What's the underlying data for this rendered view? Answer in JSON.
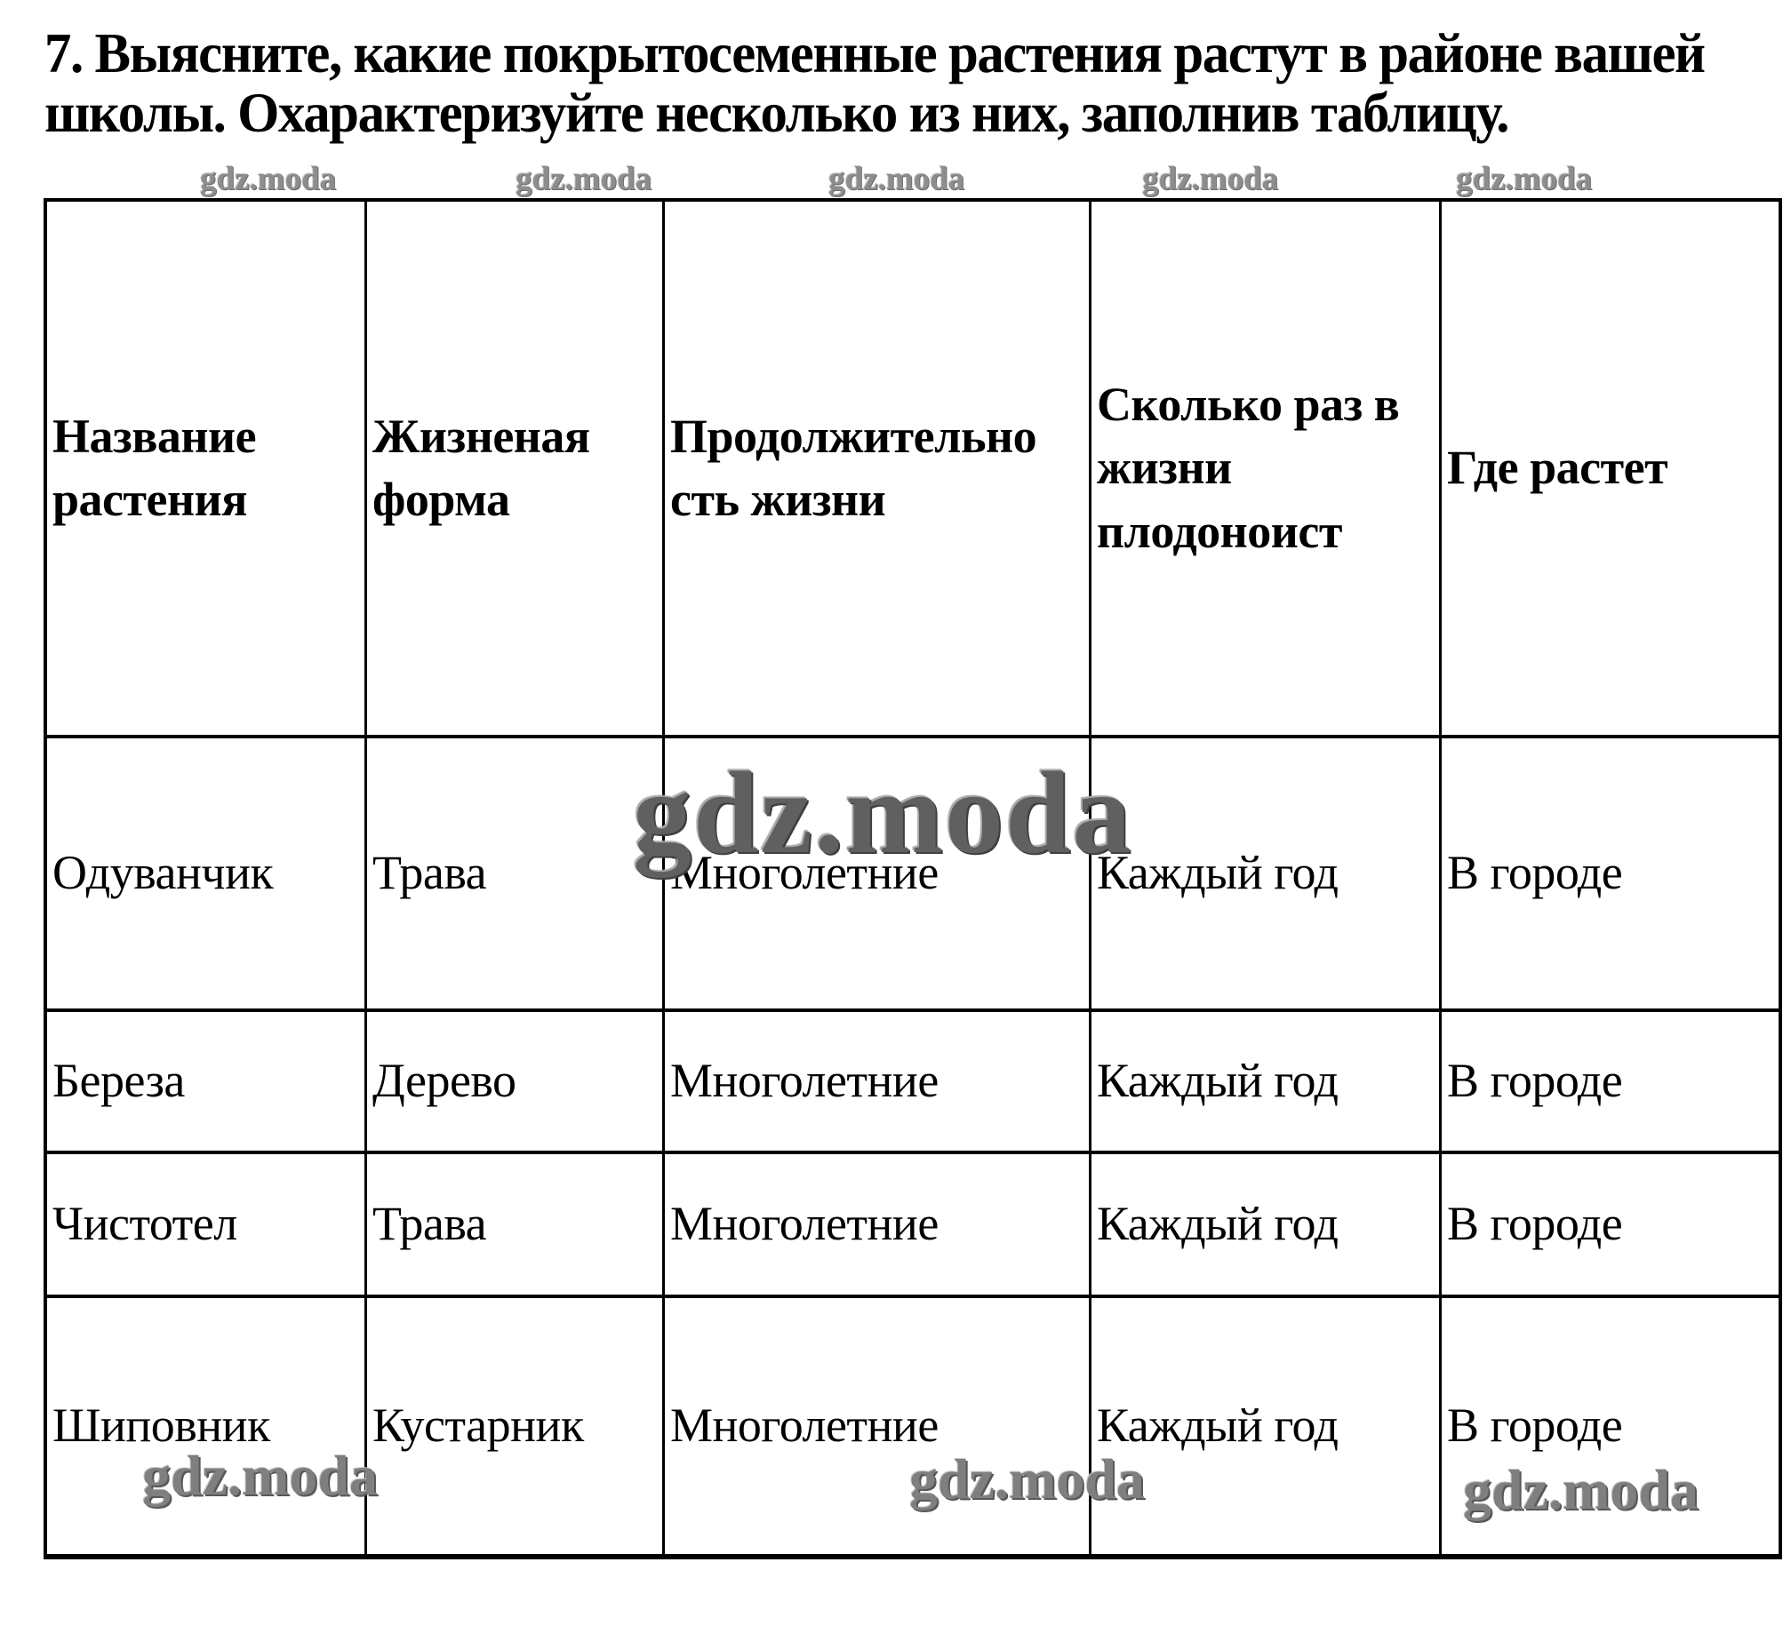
{
  "title": {
    "lines": [
      "7. Выясните, какие покрытосеменные растения растут в районе вашей",
      "школы. Охарактеризуйте несколько из них, заполнив таблицу."
    ]
  },
  "watermark": {
    "text": "gdz.moda"
  },
  "table": {
    "headers": [
      {
        "lines": [
          "Название",
          "растения"
        ]
      },
      {
        "lines": [
          "Жизненая",
          "форма"
        ]
      },
      {
        "lines": [
          "Продолжительно",
          "сть жизни"
        ]
      },
      {
        "lines": [
          "Сколько раз в",
          "жизни",
          "плодоноист"
        ]
      },
      {
        "lines": [
          "Где растет"
        ]
      }
    ],
    "rows": [
      [
        "Одуванчик",
        "Трава",
        "Многолетние",
        "Каждый год",
        "В городе"
      ],
      [
        "Береза",
        "Дерево",
        "Многолетние",
        "Каждый год",
        "В городе"
      ],
      [
        "Чистотел",
        "Трава",
        "Многолетние",
        "Каждый год",
        "В городе"
      ],
      [
        "Шиповник",
        "Кустарник",
        "Многолетние",
        "Каждый год",
        "В городе"
      ]
    ]
  },
  "colors": {
    "background": "#ffffff",
    "text": "#000000",
    "border": "#000000",
    "watermark_small": "#8d8d8d",
    "watermark_large": "#606060"
  }
}
